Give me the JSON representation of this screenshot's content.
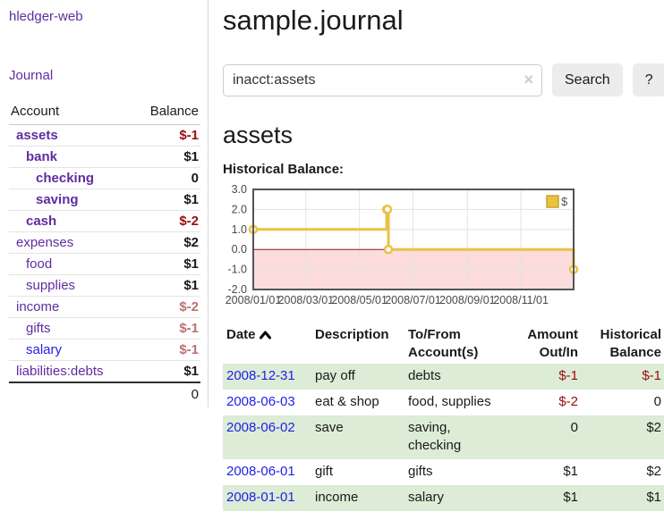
{
  "brand": {
    "label": "hledger-web"
  },
  "sidebar": {
    "journal_link": "Journal",
    "account_header": "Account",
    "balance_header": "Balance",
    "accounts": [
      {
        "name": "assets",
        "indent": 1,
        "matched": true,
        "balance": "$-1",
        "balance_style": "neg-strong"
      },
      {
        "name": "bank",
        "indent": 2,
        "matched": true,
        "balance": "$1",
        "balance_style": "pos"
      },
      {
        "name": "checking",
        "indent": 3,
        "matched": true,
        "balance": "0",
        "balance_style": "pos"
      },
      {
        "name": "saving",
        "indent": 3,
        "matched": true,
        "balance": "$1",
        "balance_style": "pos"
      },
      {
        "name": "cash",
        "indent": 2,
        "matched": true,
        "balance": "$-2",
        "balance_style": "neg-strong"
      },
      {
        "name": "expenses",
        "indent": 1,
        "matched": false,
        "balance": "$2",
        "balance_style": "pos"
      },
      {
        "name": "food",
        "indent": 2,
        "matched": false,
        "balance": "$1",
        "balance_style": "pos"
      },
      {
        "name": "supplies",
        "indent": 2,
        "matched": false,
        "balance": "$1",
        "balance_style": "pos"
      },
      {
        "name": "income",
        "indent": 1,
        "matched": false,
        "balance": "$-2",
        "balance_style": "neg-soft"
      },
      {
        "name": "gifts",
        "indent": 2,
        "matched": false,
        "balance": "$-1",
        "balance_style": "neg-soft"
      },
      {
        "name": "salary",
        "indent": 2,
        "matched": false,
        "link_color": "blue",
        "balance": "$-1",
        "balance_style": "neg-soft"
      },
      {
        "name": "liabilities:debts",
        "indent": 1,
        "matched": false,
        "balance": "$1",
        "balance_style": "pos"
      }
    ],
    "total": "0"
  },
  "main": {
    "title": "sample.journal",
    "search": {
      "value": "inacct:assets",
      "clear_icon": "×",
      "search_button": "Search",
      "help_button": "?"
    },
    "account_heading": "assets",
    "chart_title": "Historical Balance:"
  },
  "chart_data": {
    "type": "line",
    "steps": true,
    "series": [
      {
        "name": "$",
        "color": "#edc240",
        "points": [
          {
            "date": "2008-01-01",
            "value": 1
          },
          {
            "date": "2008-06-01",
            "value": 2
          },
          {
            "date": "2008-06-02",
            "value": 2
          },
          {
            "date": "2008-06-03",
            "value": 0
          },
          {
            "date": "2008-12-31",
            "value": -1
          }
        ]
      }
    ],
    "x_range": [
      "2008-01-01",
      "2008-12-31"
    ],
    "x_ticks": [
      "2008/01/01",
      "2008/03/01",
      "2008/05/01",
      "2008/07/01",
      "2008/09/01",
      "2008/11/01"
    ],
    "y_ticks": [
      3.0,
      2.0,
      1.0,
      0.0,
      -1.0,
      -2.0
    ],
    "ylim": [
      -2,
      3
    ],
    "legend": {
      "label": "$",
      "position": "top-right"
    },
    "grid": true,
    "colors": {
      "line": "#e9c244",
      "point_fill": "#ffffff",
      "negative_region": "#fcdcdc",
      "zero_line": "#8b1b1b",
      "border": "#545454",
      "gridline": "#e3e3e3",
      "tick_text": "#4a4a4a",
      "legend_box_border": "#c9a52f"
    }
  },
  "register": {
    "headers": {
      "date": "Date",
      "description": "Description",
      "tofrom": "To/From Account(s)",
      "amount": "Amount Out/In",
      "balance": "Historical Balance"
    },
    "rows": [
      {
        "date": "2008-12-31",
        "description": "pay off",
        "accounts": [
          "debts"
        ],
        "amount": "$-1",
        "amount_neg": true,
        "balance": "$-1",
        "balance_neg": true,
        "shaded": true
      },
      {
        "date": "2008-06-03",
        "description": "eat & shop",
        "accounts": [
          "food, supplies"
        ],
        "amount": "$-2",
        "amount_neg": true,
        "balance": "0",
        "balance_neg": false,
        "shaded": false
      },
      {
        "date": "2008-06-02",
        "description": "save",
        "accounts": [
          "saving,",
          "checking"
        ],
        "amount": "0",
        "amount_neg": false,
        "balance": "$2",
        "balance_neg": false,
        "shaded": true
      },
      {
        "date": "2008-06-01",
        "description": "gift",
        "accounts": [
          "gifts"
        ],
        "amount": "$1",
        "amount_neg": false,
        "balance": "$2",
        "balance_neg": false,
        "shaded": false
      },
      {
        "date": "2008-01-01",
        "description": "income",
        "accounts": [
          "salary"
        ],
        "amount": "$1",
        "amount_neg": false,
        "balance": "$1",
        "balance_neg": false,
        "shaded": true
      }
    ]
  }
}
